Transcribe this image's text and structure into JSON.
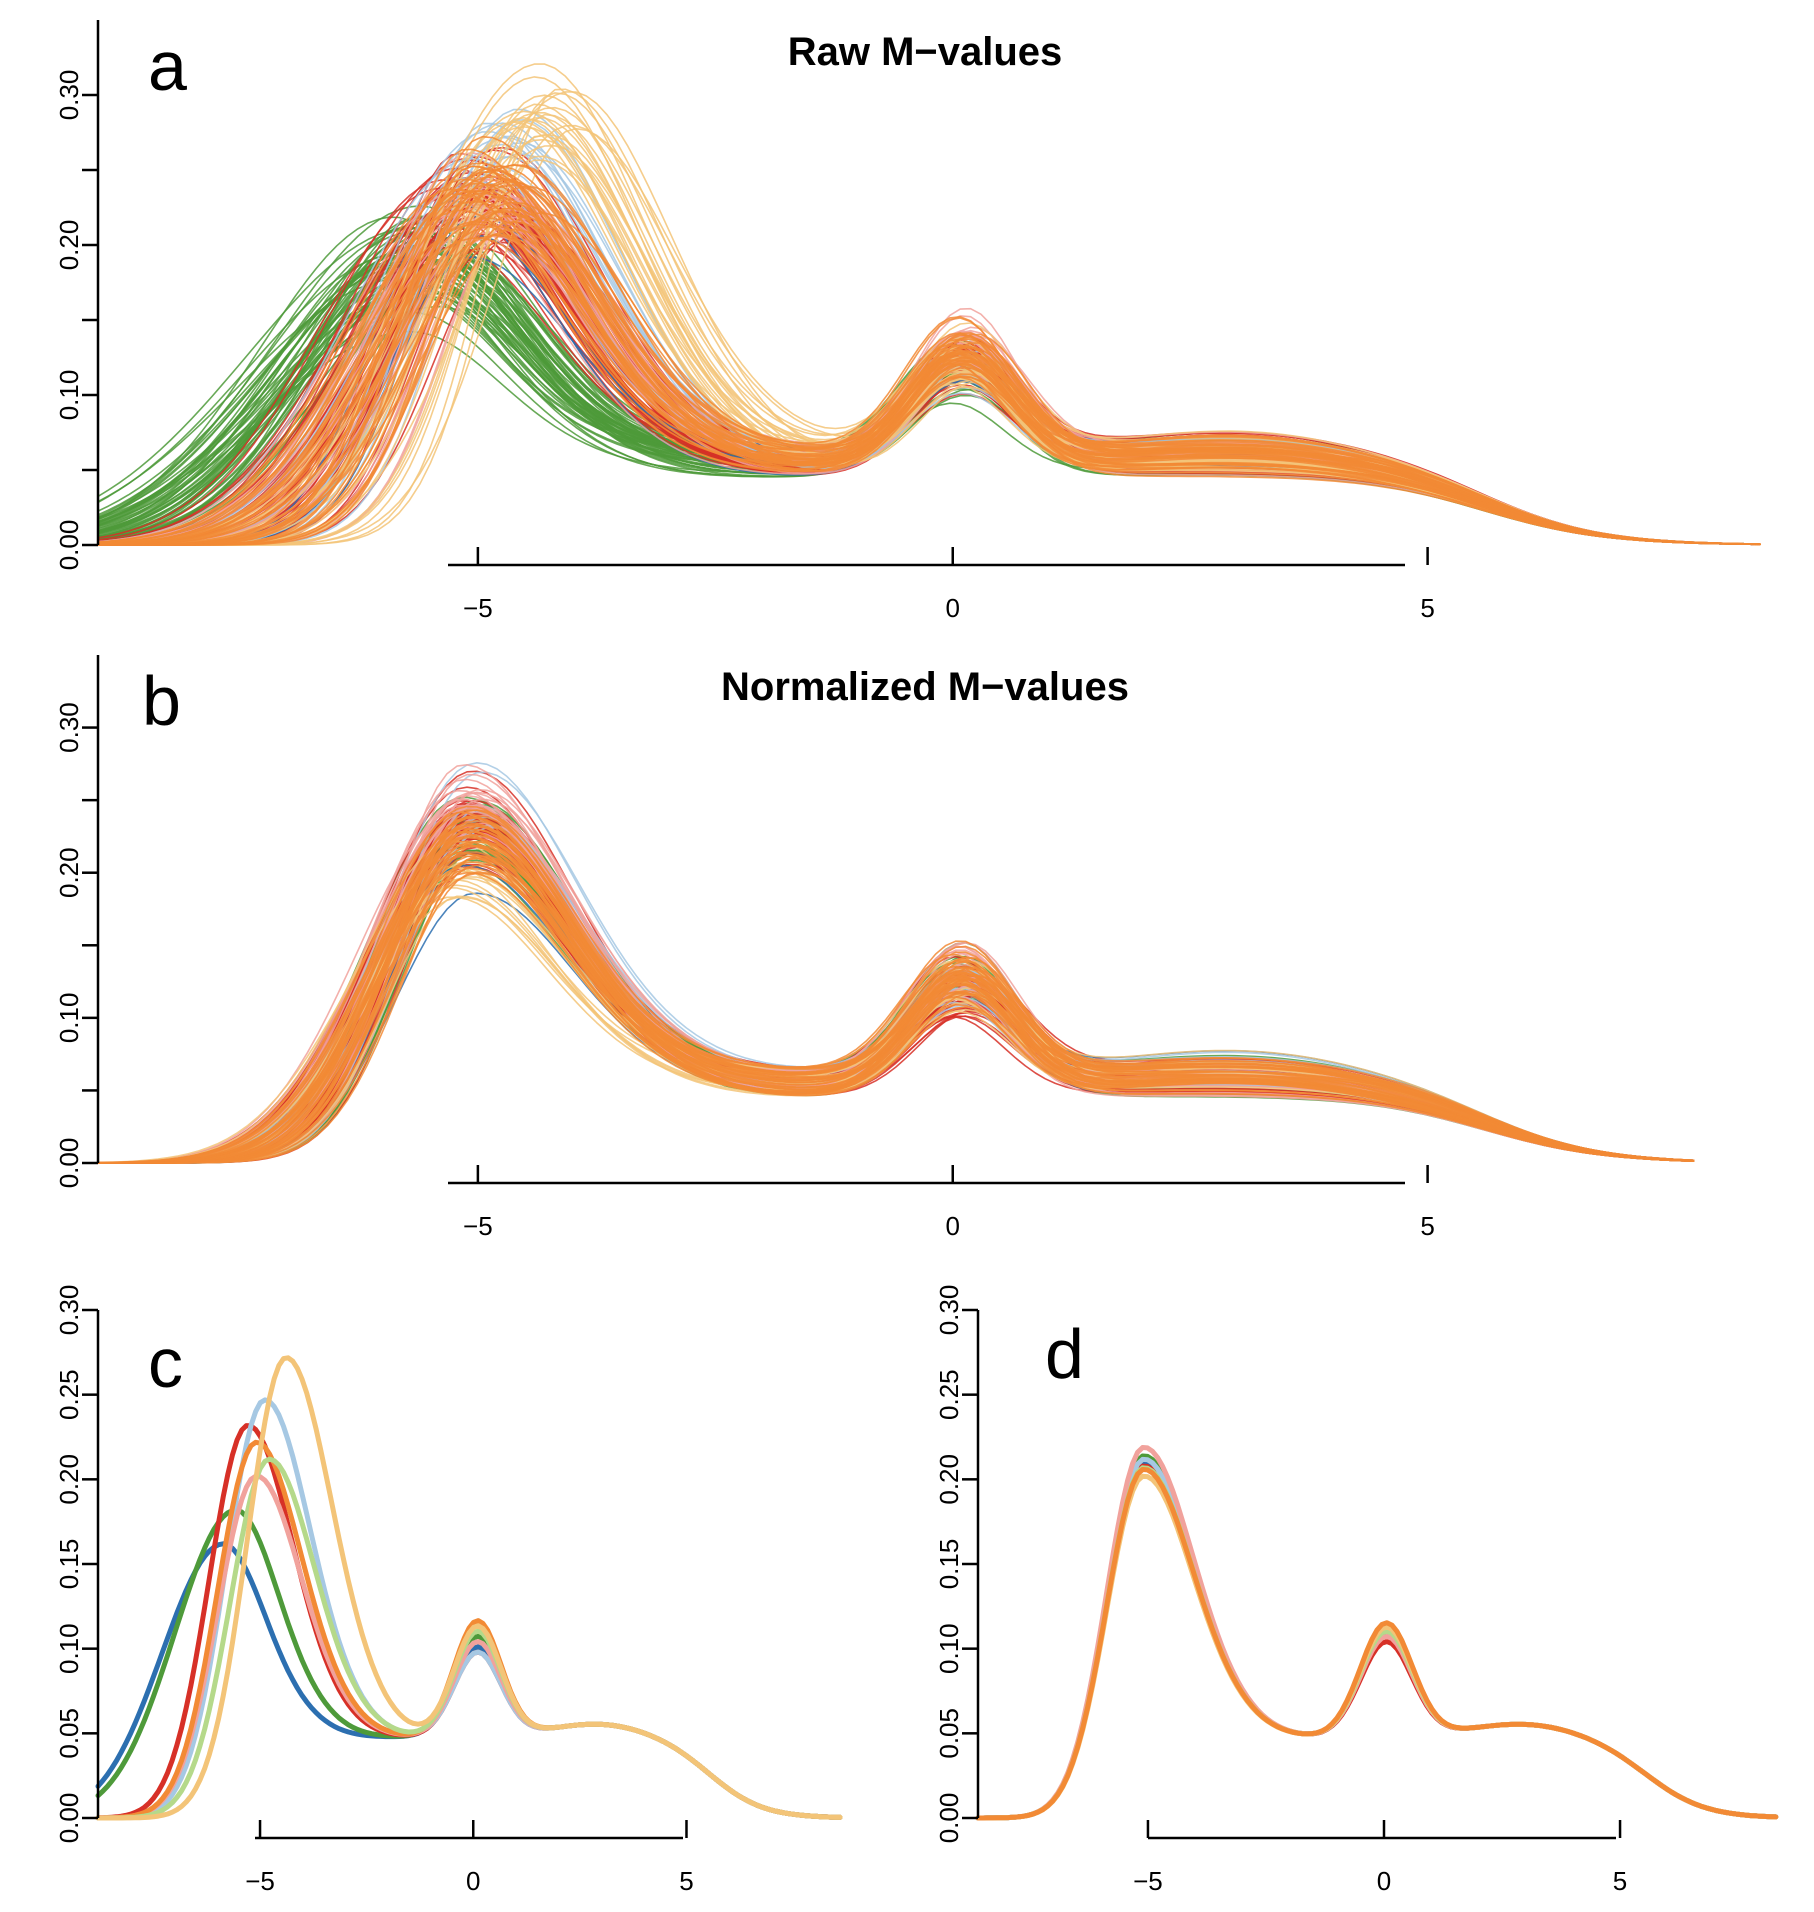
{
  "chart_data": [
    {
      "panel": "a",
      "type": "line",
      "title": "Raw M−values",
      "xlabel": "",
      "ylabel": "",
      "xlim": [
        -9.0,
        8.5
      ],
      "ylim": [
        0.0,
        0.35
      ],
      "xticks": [
        -5,
        0,
        5
      ],
      "xtick_labels": [
        "−5",
        "0",
        "5"
      ],
      "yticks": [
        0.0,
        0.05,
        0.1,
        0.15,
        0.2,
        0.25,
        0.3
      ],
      "ytick_labels": [
        "0.00",
        "",
        "0.10",
        "",
        "0.20",
        "",
        "0.30"
      ],
      "grid": false,
      "legend": "none",
      "description": "density curves of raw M-values for all samples, one thin line per sample, coloured by group",
      "groups": [
        {
          "color": "#4e9a3a",
          "curves": 60,
          "peak1": {
            "x": -5.6,
            "y": 0.19
          },
          "peak2": {
            "x": 0.1,
            "y": 0.1
          }
        },
        {
          "color": "#d73027",
          "curves": 55,
          "peak1": {
            "x": -5.0,
            "y": 0.23
          },
          "peak2": {
            "x": 0.1,
            "y": 0.11
          }
        },
        {
          "color": "#2c6fb0",
          "curves": 4,
          "peak1": {
            "x": -5.2,
            "y": 0.2
          },
          "peak2": {
            "x": 0.1,
            "y": 0.1
          }
        },
        {
          "color": "#a6c8e3",
          "curves": 15,
          "peak1": {
            "x": -4.8,
            "y": 0.26
          },
          "peak2": {
            "x": 0.1,
            "y": 0.1
          }
        },
        {
          "color": "#f1a29c",
          "curves": 25,
          "peak1": {
            "x": -4.9,
            "y": 0.22
          },
          "peak2": {
            "x": 0.1,
            "y": 0.13
          }
        },
        {
          "color": "#f3c478",
          "curves": 25,
          "peak1": {
            "x": -4.4,
            "y": 0.28
          },
          "peak2": {
            "x": 0.1,
            "y": 0.11
          }
        },
        {
          "color": "#f28a35",
          "curves": 45,
          "peak1": {
            "x": -4.9,
            "y": 0.24
          },
          "peak2": {
            "x": 0.1,
            "y": 0.12
          }
        }
      ]
    },
    {
      "panel": "b",
      "type": "line",
      "title": "Normalized M−values",
      "xlabel": "",
      "ylabel": "",
      "xlim": [
        -9.0,
        8.5
      ],
      "ylim": [
        0.0,
        0.35
      ],
      "xticks": [
        -5,
        0,
        5
      ],
      "xtick_labels": [
        "−5",
        "0",
        "5"
      ],
      "yticks": [
        0.0,
        0.05,
        0.1,
        0.15,
        0.2,
        0.25,
        0.3
      ],
      "ytick_labels": [
        "0.00",
        "",
        "0.10",
        "",
        "0.20",
        "",
        "0.30"
      ],
      "grid": false,
      "legend": "none",
      "description": "density curves of normalized M-values for all samples; peaks aligned near -5.1 and 0.1",
      "groups": [
        {
          "color": "#4e9a3a",
          "curves": 30,
          "peak1": {
            "x": -5.1,
            "y": 0.23
          },
          "peak2": {
            "x": 0.1,
            "y": 0.12
          }
        },
        {
          "color": "#d73027",
          "curves": 55,
          "peak1": {
            "x": -5.1,
            "y": 0.23
          },
          "peak2": {
            "x": 0.1,
            "y": 0.11
          }
        },
        {
          "color": "#2c6fb0",
          "curves": 4,
          "peak1": {
            "x": -5.1,
            "y": 0.22
          },
          "peak2": {
            "x": 0.1,
            "y": 0.11
          }
        },
        {
          "color": "#a6c8e3",
          "curves": 10,
          "peak1": {
            "x": -5.0,
            "y": 0.24
          },
          "peak2": {
            "x": 0.1,
            "y": 0.11
          }
        },
        {
          "color": "#f1a29c",
          "curves": 25,
          "peak1": {
            "x": -5.1,
            "y": 0.25
          },
          "peak2": {
            "x": 0.1,
            "y": 0.13
          }
        },
        {
          "color": "#f3c478",
          "curves": 15,
          "peak1": {
            "x": -5.2,
            "y": 0.2
          },
          "peak2": {
            "x": 0.1,
            "y": 0.11
          }
        },
        {
          "color": "#f28a35",
          "curves": 45,
          "peak1": {
            "x": -5.1,
            "y": 0.22
          },
          "peak2": {
            "x": 0.1,
            "y": 0.12
          }
        }
      ]
    },
    {
      "panel": "c",
      "type": "line",
      "title": "",
      "xlabel": "",
      "ylabel": "",
      "xlim": [
        -8.8,
        8.6
      ],
      "ylim": [
        0.0,
        0.3
      ],
      "xticks": [
        -5,
        0,
        5
      ],
      "xtick_labels": [
        "−5",
        "0",
        "5"
      ],
      "yticks": [
        0.0,
        0.05,
        0.1,
        0.15,
        0.2,
        0.25,
        0.3
      ],
      "ytick_labels": [
        "0.00",
        "0.05",
        "0.10",
        "0.15",
        "0.20",
        "0.25",
        "0.30"
      ],
      "grid": false,
      "legend": "none",
      "description": "mean density per group, raw M-values",
      "series": [
        {
          "color": "#2c6fb0",
          "peak1": {
            "x": -5.9,
            "y": 0.16
          },
          "peak2": {
            "x": 0.1,
            "y": 0.085
          }
        },
        {
          "color": "#4e9a3a",
          "peak1": {
            "x": -5.6,
            "y": 0.18
          },
          "peak2": {
            "x": 0.1,
            "y": 0.095
          }
        },
        {
          "color": "#d73027",
          "peak1": {
            "x": -5.3,
            "y": 0.23
          },
          "peak2": {
            "x": 0.1,
            "y": 0.08
          }
        },
        {
          "color": "#a6c8e3",
          "peak1": {
            "x": -4.9,
            "y": 0.245
          },
          "peak2": {
            "x": 0.1,
            "y": 0.08
          }
        },
        {
          "color": "#f1a29c",
          "peak1": {
            "x": -5.1,
            "y": 0.2
          },
          "peak2": {
            "x": 0.1,
            "y": 0.09
          }
        },
        {
          "color": "#f28a35",
          "peak1": {
            "x": -5.1,
            "y": 0.22
          },
          "peak2": {
            "x": 0.1,
            "y": 0.11
          }
        },
        {
          "color": "#b5d98a",
          "peak1": {
            "x": -4.8,
            "y": 0.21
          },
          "peak2": {
            "x": 0.1,
            "y": 0.1
          }
        },
        {
          "color": "#f3c478",
          "peak1": {
            "x": -4.4,
            "y": 0.27
          },
          "peak2": {
            "x": 0.1,
            "y": 0.105
          }
        }
      ]
    },
    {
      "panel": "d",
      "type": "line",
      "title": "",
      "xlabel": "",
      "ylabel": "",
      "xlim": [
        -8.6,
        8.6
      ],
      "ylim": [
        0.0,
        0.3
      ],
      "xticks": [
        -5,
        0,
        5
      ],
      "xtick_labels": [
        "−5",
        "0",
        "5"
      ],
      "yticks": [
        0.0,
        0.05,
        0.1,
        0.15,
        0.2,
        0.25,
        0.3
      ],
      "ytick_labels": [
        "0.00",
        "0.05",
        "0.10",
        "0.15",
        "0.20",
        "0.25",
        "0.30"
      ],
      "grid": false,
      "legend": "none",
      "description": "mean density per group, normalized M-values (nearly identical curves)",
      "series": [
        {
          "color": "#2c6fb0",
          "peak1": {
            "x": -5.1,
            "y": 0.208
          },
          "peak2": {
            "x": 0.05,
            "y": 0.103
          }
        },
        {
          "color": "#4e9a3a",
          "peak1": {
            "x": -5.1,
            "y": 0.212
          },
          "peak2": {
            "x": 0.05,
            "y": 0.097
          }
        },
        {
          "color": "#d73027",
          "peak1": {
            "x": -5.1,
            "y": 0.206
          },
          "peak2": {
            "x": 0.05,
            "y": 0.09
          }
        },
        {
          "color": "#a6c8e3",
          "peak1": {
            "x": -5.1,
            "y": 0.21
          },
          "peak2": {
            "x": 0.05,
            "y": 0.1
          }
        },
        {
          "color": "#f1a29c",
          "peak1": {
            "x": -5.1,
            "y": 0.217
          },
          "peak2": {
            "x": 0.05,
            "y": 0.095
          }
        },
        {
          "color": "#b5d98a",
          "peak1": {
            "x": -5.1,
            "y": 0.205
          },
          "peak2": {
            "x": 0.05,
            "y": 0.1
          }
        },
        {
          "color": "#f3c478",
          "peak1": {
            "x": -5.1,
            "y": 0.2
          },
          "peak2": {
            "x": 0.05,
            "y": 0.104
          }
        },
        {
          "color": "#f28a35",
          "peak1": {
            "x": -5.1,
            "y": 0.204
          },
          "peak2": {
            "x": 0.05,
            "y": 0.108
          }
        }
      ]
    }
  ]
}
